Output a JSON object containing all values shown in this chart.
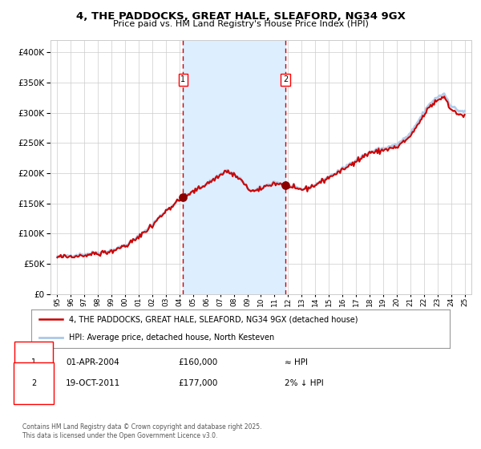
{
  "title": "4, THE PADDOCKS, GREAT HALE, SLEAFORD, NG34 9GX",
  "subtitle": "Price paid vs. HM Land Registry's House Price Index (HPI)",
  "legend_line1": "4, THE PADDOCKS, GREAT HALE, SLEAFORD, NG34 9GX (detached house)",
  "legend_line2": "HPI: Average price, detached house, North Kesteven",
  "footnote": "Contains HM Land Registry data © Crown copyright and database right 2025.\nThis data is licensed under the Open Government Licence v3.0.",
  "sale1_date": "01-APR-2004",
  "sale1_price": 160000,
  "sale1_note": "≈ HPI",
  "sale2_date": "19-OCT-2011",
  "sale2_price": 177000,
  "sale2_note": "2% ↓ HPI",
  "ylim": [
    0,
    420000
  ],
  "yticks": [
    0,
    50000,
    100000,
    150000,
    200000,
    250000,
    300000,
    350000,
    400000
  ],
  "red_color": "#cc0000",
  "blue_color": "#aac8e8",
  "shade_color": "#ddeeff",
  "marker_color": "#8b0000",
  "dashed_color": "#cc0000",
  "background_color": "#ffffff",
  "grid_color": "#cccccc",
  "sale1_x": 2004.25,
  "sale2_x": 2011.8,
  "xmin": 1994.5,
  "xmax": 2025.5
}
